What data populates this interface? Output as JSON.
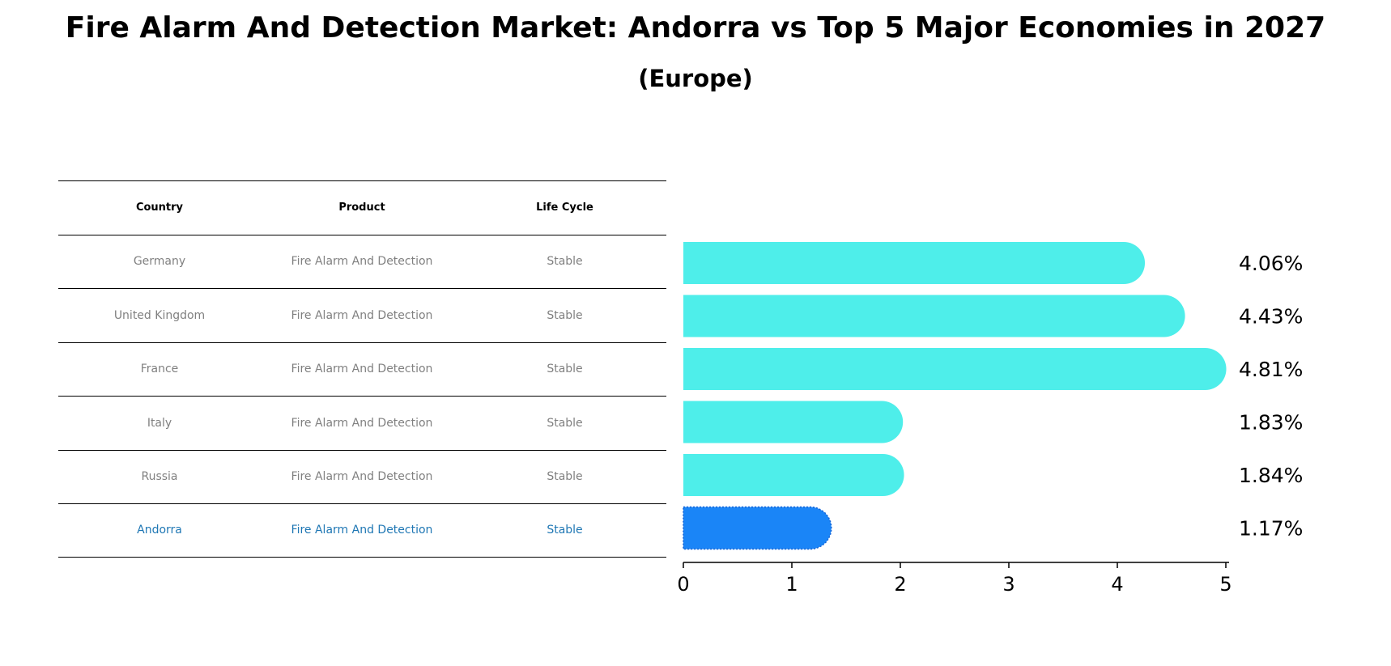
{
  "title": "Fire Alarm And Detection Market: Andorra vs Top 5 Major Economies in 2027",
  "subtitle": "(Europe)",
  "table": {
    "headers": [
      "Country",
      "Product",
      "Life Cycle"
    ],
    "rows": [
      [
        "Germany",
        "Fire Alarm And Detection",
        "Stable"
      ],
      [
        "United Kingdom",
        "Fire Alarm And Detection",
        "Stable"
      ],
      [
        "France",
        "Fire Alarm And Detection",
        "Stable"
      ],
      [
        "Italy",
        "Fire Alarm And Detection",
        "Stable"
      ],
      [
        "Russia",
        "Fire Alarm And Detection",
        "Stable"
      ],
      [
        "Andorra",
        "Fire Alarm And Detection",
        "Stable"
      ]
    ],
    "highlight_color": "#1f77b4",
    "text_color": "#808080"
  },
  "chart_data": {
    "type": "bar",
    "orientation": "horizontal",
    "categories": [
      "Germany",
      "United Kingdom",
      "France",
      "Italy",
      "Russia",
      "Andorra"
    ],
    "values": [
      4.06,
      4.43,
      4.81,
      1.83,
      1.84,
      1.17
    ],
    "value_labels": [
      "4.06%",
      "4.43%",
      "4.81%",
      "1.83%",
      "1.84%",
      "1.17%"
    ],
    "xlim": [
      0,
      5
    ],
    "xticks": [
      "0",
      "1",
      "2",
      "3",
      "4",
      "5"
    ],
    "colors": [
      "#4eeeea",
      "#4eeeea",
      "#4eeeea",
      "#4eeeea",
      "#4eeeea",
      "#1a85f7"
    ],
    "grid": false,
    "legend": "none"
  }
}
